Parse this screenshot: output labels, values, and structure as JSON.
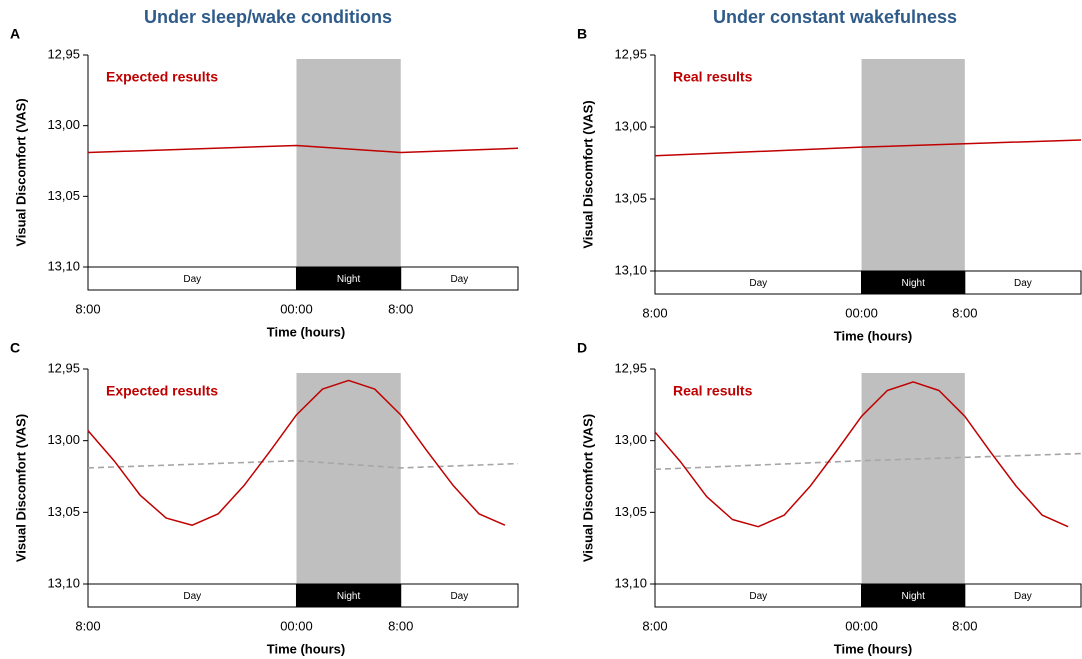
{
  "chart_data": [
    {
      "type": "line",
      "panel": "A",
      "title": "Under sleep/wake conditions",
      "annotation": "Expected results",
      "xlabel": "Time (hours)",
      "ylabel": "Visual Discomfort (VAS)",
      "xlim": [
        0,
        33
      ],
      "ylim": [
        13.1,
        12.95
      ],
      "xticks": [
        {
          "value": 0,
          "label": "8:00"
        },
        {
          "value": 16,
          "label": "00:00"
        },
        {
          "value": 24,
          "label": "8:00"
        }
      ],
      "yticks": [
        {
          "value": 12.95,
          "label": "12,95"
        },
        {
          "value": 13.0,
          "label": "13,00"
        },
        {
          "value": 13.05,
          "label": "13,05"
        },
        {
          "value": 13.1,
          "label": "13,10"
        }
      ],
      "phases": [
        {
          "label": "Day",
          "start": 0,
          "end": 16
        },
        {
          "label": "Night",
          "start": 16,
          "end": 24,
          "shaded": true
        },
        {
          "label": "Day",
          "start": 24,
          "end": 33
        }
      ],
      "series": [
        {
          "color": "#c00000",
          "x": [
            0,
            16,
            24,
            33
          ],
          "values": [
            13.019,
            13.014,
            13.019,
            13.016
          ]
        }
      ]
    },
    {
      "type": "line",
      "panel": "B",
      "title": "Under constant wakefulness",
      "annotation": "Real results",
      "xlabel": "Time (hours)",
      "ylabel": "Visual Discomfort (VAS)",
      "xlim": [
        0,
        33
      ],
      "ylim": [
        13.1,
        12.95
      ],
      "xticks": [
        {
          "value": 0,
          "label": "8:00"
        },
        {
          "value": 16,
          "label": "00:00"
        },
        {
          "value": 24,
          "label": "8:00"
        }
      ],
      "yticks": [
        {
          "value": 12.95,
          "label": "12,95"
        },
        {
          "value": 13.0,
          "label": "13,00"
        },
        {
          "value": 13.05,
          "label": "13,05"
        },
        {
          "value": 13.1,
          "label": "13,10"
        }
      ],
      "phases": [
        {
          "label": "Day",
          "start": 0,
          "end": 16
        },
        {
          "label": "Night",
          "start": 16,
          "end": 24,
          "shaded": true
        },
        {
          "label": "Day",
          "start": 24,
          "end": 33
        }
      ],
      "series": [
        {
          "color": "#c00000",
          "x": [
            0,
            16,
            33
          ],
          "values": [
            13.02,
            13.014,
            13.009
          ]
        }
      ]
    },
    {
      "type": "line",
      "panel": "C",
      "annotation": "Expected results",
      "xlabel": "Time (hours)",
      "ylabel": "Visual Discomfort (VAS)",
      "xlim": [
        0,
        33
      ],
      "ylim": [
        13.1,
        12.95
      ],
      "xticks": [
        {
          "value": 0,
          "label": "8:00"
        },
        {
          "value": 16,
          "label": "00:00"
        },
        {
          "value": 24,
          "label": "8:00"
        }
      ],
      "yticks": [
        {
          "value": 12.95,
          "label": "12,95"
        },
        {
          "value": 13.0,
          "label": "13,00"
        },
        {
          "value": 13.05,
          "label": "13,05"
        },
        {
          "value": 13.1,
          "label": "13,10"
        }
      ],
      "phases": [
        {
          "label": "Day",
          "start": 0,
          "end": 16
        },
        {
          "label": "Night",
          "start": 16,
          "end": 24,
          "shaded": true
        },
        {
          "label": "Day",
          "start": 24,
          "end": 33
        }
      ],
      "series": [
        {
          "color": "#a6a6a6",
          "dashed": true,
          "x": [
            0,
            16,
            24,
            33
          ],
          "values": [
            13.019,
            13.014,
            13.019,
            13.016
          ]
        },
        {
          "color": "#c00000",
          "x": [
            0,
            2,
            4,
            6,
            8,
            10,
            12,
            14,
            16,
            18,
            20,
            22,
            24,
            26,
            28,
            30,
            32
          ],
          "values": [
            12.993,
            13.014,
            13.038,
            13.054,
            13.059,
            13.051,
            13.031,
            13.007,
            12.982,
            12.964,
            12.958,
            12.964,
            12.982,
            13.007,
            13.031,
            13.051,
            13.059
          ]
        }
      ]
    },
    {
      "type": "line",
      "panel": "D",
      "annotation": "Real results",
      "xlabel": "Time (hours)",
      "ylabel": "Visual Discomfort (VAS)",
      "xlim": [
        0,
        33
      ],
      "ylim": [
        13.1,
        12.95
      ],
      "xticks": [
        {
          "value": 0,
          "label": "8:00"
        },
        {
          "value": 16,
          "label": "00:00"
        },
        {
          "value": 24,
          "label": "8:00"
        }
      ],
      "yticks": [
        {
          "value": 12.95,
          "label": "12,95"
        },
        {
          "value": 13.0,
          "label": "13,00"
        },
        {
          "value": 13.05,
          "label": "13,05"
        },
        {
          "value": 13.1,
          "label": "13,10"
        }
      ],
      "phases": [
        {
          "label": "Day",
          "start": 0,
          "end": 16
        },
        {
          "label": "Night",
          "start": 16,
          "end": 24,
          "shaded": true
        },
        {
          "label": "Day",
          "start": 24,
          "end": 33
        }
      ],
      "series": [
        {
          "color": "#a6a6a6",
          "dashed": true,
          "x": [
            0,
            16,
            33
          ],
          "values": [
            13.02,
            13.014,
            13.009
          ]
        },
        {
          "color": "#c00000",
          "x": [
            0,
            2,
            4,
            6,
            8,
            10,
            12,
            14,
            16,
            18,
            20,
            22,
            24,
            26,
            28,
            30,
            32
          ],
          "values": [
            12.994,
            13.015,
            13.039,
            13.055,
            13.06,
            13.052,
            13.032,
            13.008,
            12.983,
            12.965,
            12.959,
            12.965,
            12.983,
            13.008,
            13.032,
            13.052,
            13.06
          ]
        }
      ]
    }
  ]
}
